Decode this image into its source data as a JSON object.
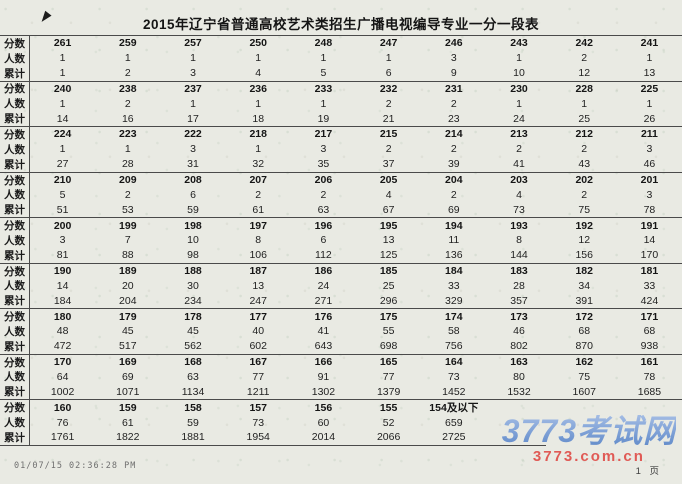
{
  "page": {
    "title": "2015年辽宁省普通高校艺术类招生广播电视编导专业一分一段表",
    "footer_timestamp": "01/07/15 02:36:28 PM",
    "footer_page": "1 页",
    "watermark_name": "3773考试网",
    "watermark_domain": "3773.com.cn"
  },
  "colors": {
    "paper_bg": "#e9eae3",
    "line": "#4a4a4a",
    "text": "#1a1a1a",
    "watermark_blue": "#7da0d6",
    "watermark_red": "#e05a55"
  },
  "table": {
    "row_labels": [
      "分数",
      "人数",
      "累计"
    ],
    "blocks": [
      {
        "scores": [
          "261",
          "259",
          "257",
          "250",
          "248",
          "247",
          "246",
          "243",
          "242",
          "241"
        ],
        "counts": [
          "1",
          "1",
          "1",
          "1",
          "1",
          "1",
          "3",
          "1",
          "2",
          "1"
        ],
        "cumulative": [
          "1",
          "2",
          "3",
          "4",
          "5",
          "6",
          "9",
          "10",
          "12",
          "13"
        ]
      },
      {
        "scores": [
          "240",
          "238",
          "237",
          "236",
          "233",
          "232",
          "231",
          "230",
          "228",
          "225"
        ],
        "counts": [
          "1",
          "2",
          "1",
          "1",
          "1",
          "2",
          "2",
          "1",
          "1",
          "1"
        ],
        "cumulative": [
          "14",
          "16",
          "17",
          "18",
          "19",
          "21",
          "23",
          "24",
          "25",
          "26"
        ]
      },
      {
        "scores": [
          "224",
          "223",
          "222",
          "218",
          "217",
          "215",
          "214",
          "213",
          "212",
          "211"
        ],
        "counts": [
          "1",
          "1",
          "3",
          "1",
          "3",
          "2",
          "2",
          "2",
          "2",
          "3"
        ],
        "cumulative": [
          "27",
          "28",
          "31",
          "32",
          "35",
          "37",
          "39",
          "41",
          "43",
          "46"
        ]
      },
      {
        "scores": [
          "210",
          "209",
          "208",
          "207",
          "206",
          "205",
          "204",
          "203",
          "202",
          "201"
        ],
        "counts": [
          "5",
          "2",
          "6",
          "2",
          "2",
          "4",
          "2",
          "4",
          "2",
          "3"
        ],
        "cumulative": [
          "51",
          "53",
          "59",
          "61",
          "63",
          "67",
          "69",
          "73",
          "75",
          "78"
        ]
      },
      {
        "scores": [
          "200",
          "199",
          "198",
          "197",
          "196",
          "195",
          "194",
          "193",
          "192",
          "191"
        ],
        "counts": [
          "3",
          "7",
          "10",
          "8",
          "6",
          "13",
          "11",
          "8",
          "12",
          "14"
        ],
        "cumulative": [
          "81",
          "88",
          "98",
          "106",
          "112",
          "125",
          "136",
          "144",
          "156",
          "170"
        ]
      },
      {
        "scores": [
          "190",
          "189",
          "188",
          "187",
          "186",
          "185",
          "184",
          "183",
          "182",
          "181"
        ],
        "counts": [
          "14",
          "20",
          "30",
          "13",
          "24",
          "25",
          "33",
          "28",
          "34",
          "33"
        ],
        "cumulative": [
          "184",
          "204",
          "234",
          "247",
          "271",
          "296",
          "329",
          "357",
          "391",
          "424"
        ]
      },
      {
        "scores": [
          "180",
          "179",
          "178",
          "177",
          "176",
          "175",
          "174",
          "173",
          "172",
          "171"
        ],
        "counts": [
          "48",
          "45",
          "45",
          "40",
          "41",
          "55",
          "58",
          "46",
          "68",
          "68"
        ],
        "cumulative": [
          "472",
          "517",
          "562",
          "602",
          "643",
          "698",
          "756",
          "802",
          "870",
          "938"
        ]
      },
      {
        "scores": [
          "170",
          "169",
          "168",
          "167",
          "166",
          "165",
          "164",
          "163",
          "162",
          "161"
        ],
        "counts": [
          "64",
          "69",
          "63",
          "77",
          "91",
          "77",
          "73",
          "80",
          "75",
          "78"
        ],
        "cumulative": [
          "1002",
          "1071",
          "1134",
          "1211",
          "1302",
          "1379",
          "1452",
          "1532",
          "1607",
          "1685"
        ]
      },
      {
        "scores": [
          "160",
          "159",
          "158",
          "157",
          "156",
          "155",
          "154及以下",
          "",
          "",
          ""
        ],
        "counts": [
          "76",
          "61",
          "59",
          "73",
          "60",
          "52",
          "659",
          "",
          "",
          ""
        ],
        "cumulative": [
          "1761",
          "1822",
          "1881",
          "1954",
          "2014",
          "2066",
          "2725",
          "",
          "",
          ""
        ]
      }
    ]
  }
}
